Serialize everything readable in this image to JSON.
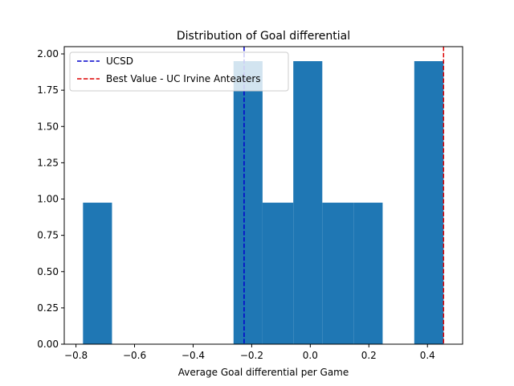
{
  "chart_data": {
    "type": "bar",
    "title": "Distribution of Goal differential",
    "xlabel": "Average Goal differential per Game",
    "ylabel": "",
    "xlim": [
      -0.84,
      0.52
    ],
    "ylim": [
      0,
      2.05
    ],
    "x_ticks": [
      -0.8,
      -0.6,
      -0.4,
      -0.2,
      0.0,
      0.2,
      0.4
    ],
    "x_tick_labels": [
      "−0.8",
      "−0.6",
      "−0.4",
      "−0.2",
      "0.0",
      "0.2",
      "0.4"
    ],
    "y_ticks": [
      0,
      0.25,
      0.5,
      0.75,
      1.0,
      1.25,
      1.5,
      1.75,
      2.0
    ],
    "y_tick_labels": [
      "0.00",
      "0.25",
      "0.50",
      "0.75",
      "1.00",
      "1.25",
      "1.50",
      "1.75",
      "2.00"
    ],
    "bar_color": "#1f77b4",
    "bins": [
      {
        "x0": -0.776,
        "x1": -0.677,
        "value": 0.975
      },
      {
        "x0": -0.262,
        "x1": -0.163,
        "value": 1.95
      },
      {
        "x0": -0.163,
        "x1": -0.058,
        "value": 0.975
      },
      {
        "x0": -0.058,
        "x1": 0.041,
        "value": 1.95
      },
      {
        "x0": 0.041,
        "x1": 0.148,
        "value": 0.975
      },
      {
        "x0": 0.148,
        "x1": 0.247,
        "value": 0.975
      },
      {
        "x0": 0.355,
        "x1": 0.455,
        "value": 1.95
      }
    ],
    "reference_lines": [
      {
        "name": "UCSD",
        "x": -0.226,
        "color": "#0000cc"
      },
      {
        "name": "Best Value - UC Irvine Anteaters",
        "x": 0.455,
        "color": "#dd0000"
      }
    ],
    "legend_placement": "top-left"
  }
}
